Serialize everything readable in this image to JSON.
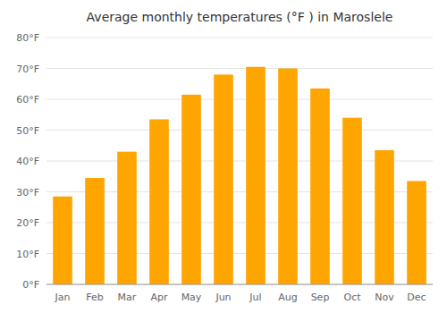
{
  "chart_data": {
    "type": "bar",
    "title": "Average monthly temperatures (°F ) in Maroslele",
    "categories": [
      "Jan",
      "Feb",
      "Mar",
      "Apr",
      "May",
      "Jun",
      "Jul",
      "Aug",
      "Sep",
      "Oct",
      "Nov",
      "Dec"
    ],
    "values": [
      28.5,
      34.5,
      43.0,
      53.5,
      61.5,
      68.0,
      70.5,
      70.0,
      63.5,
      54.0,
      43.5,
      33.5
    ],
    "color": "#FFA500",
    "ylim": [
      0,
      80
    ],
    "yticks": [
      {
        "value": 0,
        "label": "0°F"
      },
      {
        "value": 10,
        "label": "10°F"
      },
      {
        "value": 20,
        "label": "20°F"
      },
      {
        "value": 30,
        "label": "30°F"
      },
      {
        "value": 40,
        "label": "40°F"
      },
      {
        "value": 50,
        "label": "50°F"
      },
      {
        "value": 60,
        "label": "60°F"
      },
      {
        "value": 70,
        "label": "70°F"
      },
      {
        "value": 80,
        "label": "80°F"
      }
    ],
    "grid": true
  }
}
